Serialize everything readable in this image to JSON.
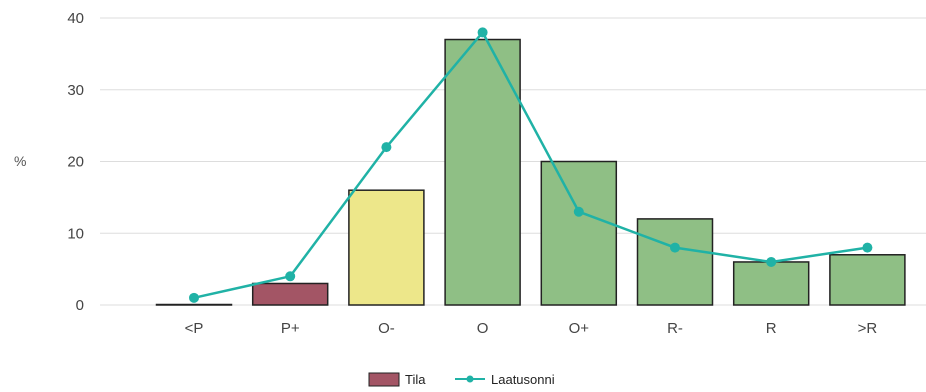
{
  "chart_data": {
    "type": "bar",
    "ylabel": "%",
    "xlabel": "",
    "ylim": [
      0,
      40
    ],
    "yticks": [
      0,
      10,
      20,
      30,
      40
    ],
    "grid": true,
    "legend_position": "bottom",
    "categories": [
      "<P",
      "P+",
      "O-",
      "O",
      "O+",
      "R-",
      "R",
      ">R"
    ],
    "bars": {
      "name": "Tila",
      "values": [
        0,
        3,
        16,
        37,
        20,
        12,
        6,
        7
      ],
      "colors": [
        "#8fbf85",
        "#a35565",
        "#ede78a",
        "#8fbf85",
        "#8fbf85",
        "#8fbf85",
        "#8fbf85",
        "#8fbf85"
      ],
      "stroke": "#222222"
    },
    "line": {
      "name": "Laatusonni",
      "values": [
        1,
        4,
        22,
        38,
        13,
        8,
        6,
        8
      ],
      "color": "#20b2a6"
    },
    "legend_swatch_color": "#a35565"
  }
}
